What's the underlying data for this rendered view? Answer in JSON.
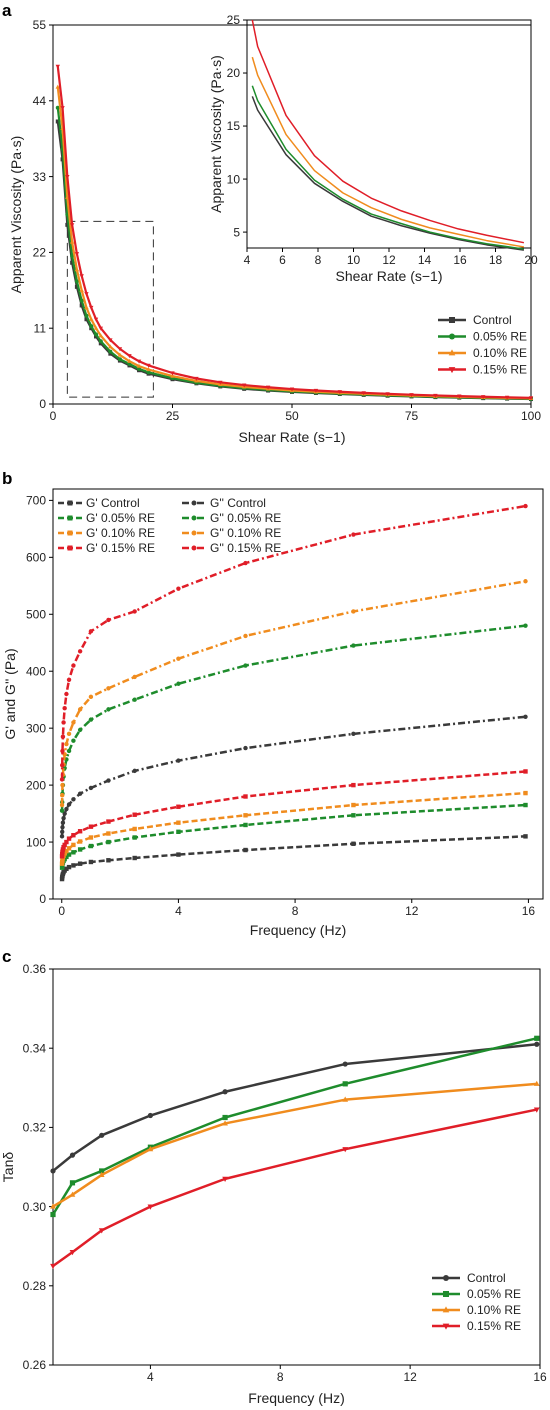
{
  "colors": {
    "control": "#3a3a3a",
    "re005": "#1e8c2c",
    "re010": "#f08c1e",
    "re015": "#e01e28"
  },
  "chart_data": [
    {
      "id": "a",
      "panel": "a",
      "type": "line",
      "xlabel": "Shear Rate (s−1)",
      "ylabel": "Apparent Viscosity (Pa·s)",
      "xlim": [
        0,
        100
      ],
      "ylim": [
        0,
        55
      ],
      "xticks": [
        0,
        25,
        50,
        75,
        100
      ],
      "yticks": [
        0,
        11,
        22,
        33,
        44,
        55
      ],
      "legend_position": "lower-right",
      "x": [
        1,
        2,
        3,
        4,
        5,
        6,
        7,
        8,
        9,
        10,
        12,
        14,
        16,
        18,
        20,
        25,
        30,
        35,
        40,
        45,
        50,
        55,
        60,
        65,
        70,
        75,
        80,
        85,
        90,
        95,
        100
      ],
      "series": [
        {
          "name": "Control",
          "color_key": "control",
          "marker": "square",
          "values": [
            41,
            35.5,
            26,
            20.5,
            17,
            14.3,
            12.3,
            11,
            9.8,
            8.8,
            7.3,
            6.3,
            5.6,
            4.9,
            4.4,
            3.6,
            3.0,
            2.55,
            2.2,
            1.95,
            1.75,
            1.6,
            1.45,
            1.32,
            1.2,
            1.1,
            1.0,
            0.92,
            0.85,
            0.78,
            0.72
          ]
        },
        {
          "name": "0.05% RE",
          "color_key": "re005",
          "marker": "circle",
          "values": [
            43,
            37,
            27.5,
            21.5,
            17.8,
            15,
            12.8,
            11.3,
            10.1,
            9.1,
            7.6,
            6.5,
            5.8,
            5.1,
            4.6,
            3.75,
            3.1,
            2.65,
            2.3,
            2.05,
            1.82,
            1.66,
            1.5,
            1.37,
            1.25,
            1.14,
            1.04,
            0.96,
            0.88,
            0.82,
            0.75
          ]
        },
        {
          "name": "0.10% RE",
          "color_key": "re010",
          "marker": "triangle-up",
          "values": [
            46,
            40,
            30,
            23.5,
            19.5,
            16.5,
            14,
            12.3,
            11,
            9.9,
            8.3,
            7.1,
            6.2,
            5.5,
            5,
            4.05,
            3.35,
            2.85,
            2.48,
            2.2,
            1.96,
            1.78,
            1.62,
            1.48,
            1.35,
            1.23,
            1.13,
            1.04,
            0.96,
            0.89,
            0.82
          ]
        },
        {
          "name": "0.15% RE",
          "color_key": "re015",
          "marker": "triangle-down",
          "values": [
            49,
            43,
            33,
            26,
            21.8,
            18.6,
            16,
            14,
            12.3,
            11,
            9.3,
            8,
            7,
            6.2,
            5.6,
            4.5,
            3.7,
            3.15,
            2.75,
            2.43,
            2.17,
            1.96,
            1.78,
            1.62,
            1.48,
            1.35,
            1.24,
            1.14,
            1.05,
            0.97,
            0.9
          ]
        }
      ],
      "inset": {
        "xlabel": "Shear Rate (s−1)",
        "ylabel": "Apparent Viscosity (Pa·s)",
        "xlim": [
          4,
          20
        ],
        "ylim": [
          3.5,
          25
        ],
        "xticks": [
          4,
          6,
          8,
          10,
          12,
          14,
          16,
          18,
          20
        ],
        "yticks": [
          5,
          10,
          15,
          20,
          25
        ],
        "x": [
          4.3,
          4.6,
          6.2,
          7.8,
          9.4,
          11,
          12.7,
          14.3,
          15.9,
          17.5,
          19.6
        ],
        "series": [
          {
            "name": "Control",
            "color_key": "control",
            "values": [
              17.8,
              16.5,
              12.3,
              9.6,
              7.9,
              6.5,
              5.6,
              4.9,
              4.3,
              3.8,
              3.3
            ]
          },
          {
            "name": "0.05% RE",
            "color_key": "re005",
            "values": [
              18.8,
              17.4,
              12.8,
              9.9,
              8.1,
              6.7,
              5.8,
              5.0,
              4.4,
              3.9,
              3.4
            ]
          },
          {
            "name": "0.10% RE",
            "color_key": "re010",
            "values": [
              21.5,
              19.8,
              14.2,
              10.8,
              8.7,
              7.3,
              6.2,
              5.4,
              4.8,
              4.2,
              3.6
            ]
          },
          {
            "name": "0.15% RE",
            "color_key": "re015",
            "values": [
              25,
              22.5,
              16,
              12.2,
              9.8,
              8.2,
              7.0,
              6.1,
              5.3,
              4.7,
              4.0
            ]
          }
        ]
      }
    },
    {
      "id": "b",
      "panel": "b",
      "type": "line",
      "xlabel": "Frequency (Hz)",
      "ylabel": "G' and G'' (Pa)",
      "xlim": [
        -0.3,
        16.5
      ],
      "ylim": [
        0,
        720
      ],
      "xticks": [
        0,
        4,
        8,
        12,
        16
      ],
      "yticks": [
        0,
        100,
        200,
        300,
        400,
        500,
        600,
        700
      ],
      "legend_position": "top-left",
      "x": [
        0.01,
        0.016,
        0.025,
        0.04,
        0.063,
        0.1,
        0.16,
        0.25,
        0.4,
        0.63,
        1.0,
        1.6,
        2.5,
        4.0,
        6.3,
        10,
        15.9
      ],
      "series": [
        {
          "name": "G' Control",
          "color_key": "control",
          "dash": "dash",
          "values": [
            35,
            38,
            41,
            44,
            47,
            50,
            53,
            56,
            59,
            62,
            65,
            68,
            72,
            78,
            86,
            97,
            110
          ]
        },
        {
          "name": "G' 0.05% RE",
          "color_key": "re005",
          "dash": "dash",
          "values": [
            55,
            58,
            61,
            64,
            67,
            70,
            74,
            78,
            82,
            87,
            93,
            100,
            108,
            118,
            130,
            147,
            165
          ]
        },
        {
          "name": "G' 0.10% RE",
          "color_key": "re010",
          "dash": "dash",
          "values": [
            62,
            65,
            68,
            72,
            76,
            80,
            84,
            89,
            95,
            101,
            108,
            115,
            123,
            134,
            147,
            165,
            186
          ]
        },
        {
          "name": "G' 0.15% RE",
          "color_key": "re015",
          "dash": "dash",
          "values": [
            75,
            79,
            83,
            87,
            91,
            95,
            100,
            106,
            112,
            119,
            127,
            136,
            148,
            162,
            180,
            200,
            224
          ]
        },
        {
          "name": "G'' Control",
          "color_key": "control",
          "dash": "dashdot",
          "values": [
            110,
            118,
            126,
            134,
            142,
            150,
            158,
            166,
            175,
            185,
            195,
            208,
            225,
            243,
            265,
            290,
            320
          ]
        },
        {
          "name": "G'' 0.05% RE",
          "color_key": "re005",
          "dash": "dashdot",
          "values": [
            155,
            170,
            185,
            200,
            215,
            230,
            245,
            260,
            278,
            297,
            315,
            333,
            350,
            378,
            410,
            445,
            480
          ]
        },
        {
          "name": "G'' 0.10% RE",
          "color_key": "re010",
          "dash": "dashdot",
          "values": [
            165,
            182,
            200,
            218,
            236,
            254,
            272,
            290,
            310,
            333,
            355,
            370,
            390,
            422,
            462,
            505,
            558
          ]
        },
        {
          "name": "G'' 0.15% RE",
          "color_key": "re015",
          "dash": "dashdot",
          "values": [
            210,
            235,
            260,
            285,
            310,
            335,
            360,
            385,
            410,
            435,
            470,
            490,
            505,
            545,
            590,
            640,
            690
          ]
        }
      ]
    },
    {
      "id": "c",
      "panel": "c",
      "type": "line",
      "xlabel": "Frequency (Hz)",
      "ylabel": "Tanδ",
      "xlim": [
        1,
        16
      ],
      "ylim": [
        0.26,
        0.36
      ],
      "xticks": [
        4,
        8,
        12,
        16
      ],
      "yticks": [
        0.26,
        0.28,
        0.3,
        0.32,
        0.34,
        0.36
      ],
      "legend_position": "lower-right",
      "x": [
        1.0,
        1.6,
        2.5,
        4.0,
        6.3,
        10,
        15.9
      ],
      "series": [
        {
          "name": "Control",
          "color_key": "control",
          "marker": "circle",
          "values": [
            0.309,
            0.313,
            0.318,
            0.323,
            0.329,
            0.336,
            0.341
          ]
        },
        {
          "name": "0.05% RE",
          "color_key": "re005",
          "marker": "square",
          "values": [
            0.298,
            0.306,
            0.309,
            0.315,
            0.3225,
            0.331,
            0.3425
          ]
        },
        {
          "name": "0.10% RE",
          "color_key": "re010",
          "marker": "triangle-up",
          "values": [
            0.3,
            0.303,
            0.308,
            0.3145,
            0.321,
            0.327,
            0.331
          ]
        },
        {
          "name": "0.15% RE",
          "color_key": "re015",
          "marker": "triangle-down",
          "values": [
            0.285,
            0.2885,
            0.294,
            0.3,
            0.307,
            0.3145,
            0.3245
          ]
        }
      ]
    }
  ]
}
